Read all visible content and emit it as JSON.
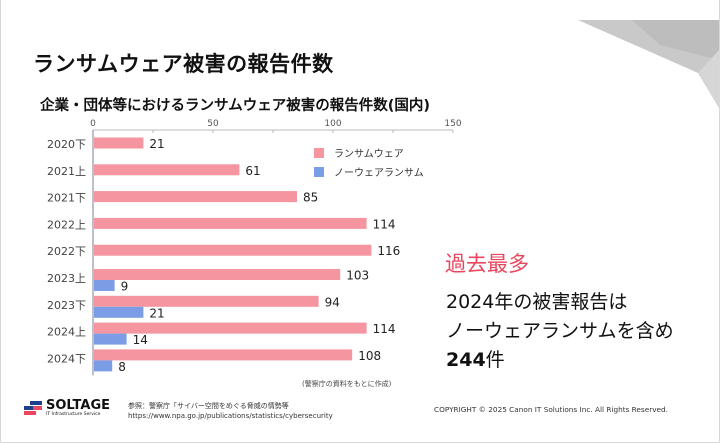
{
  "slide": {
    "title": "ランサムウェア被害の報告件数",
    "highlight": "過去最多",
    "message_line1": "2024年の被害報告は",
    "message_line2": "ノーウェアランサムを含め",
    "message_count": "244",
    "message_unit": "件"
  },
  "footer": {
    "logo_name": "SOLTAGE",
    "logo_sub": "IT Infrastructure Service",
    "source_line1": "参照：警察庁「サイバー空間をめぐる脅威の情勢等",
    "source_line2": "https://www.npa.go.jp/publications/statistics/cybersecurity",
    "copyright": "COPYRIGHT © 2025 Canon IT Solutions Inc. All Rights Reserved."
  },
  "chart_data": {
    "type": "bar",
    "orientation": "horizontal",
    "title": "企業・団体等におけるランサムウェア被害の報告件数(国内)",
    "note": "(警察庁の資料をもとに作成)",
    "categories": [
      "2020下",
      "2021上",
      "2021下",
      "2022上",
      "2022下",
      "2023上",
      "2023下",
      "2024上",
      "2024下"
    ],
    "series": [
      {
        "name": "ランサムウェア",
        "color": "#f4959f",
        "values": [
          21,
          61,
          85,
          114,
          116,
          103,
          94,
          114,
          108
        ]
      },
      {
        "name": "ノーウェアランサム",
        "color": "#7b9de6",
        "values": [
          null,
          null,
          null,
          null,
          null,
          9,
          21,
          14,
          8
        ]
      }
    ],
    "xlim": [
      0,
      150
    ],
    "xticks": [
      0,
      50,
      100,
      150
    ],
    "legend": "top-right"
  }
}
